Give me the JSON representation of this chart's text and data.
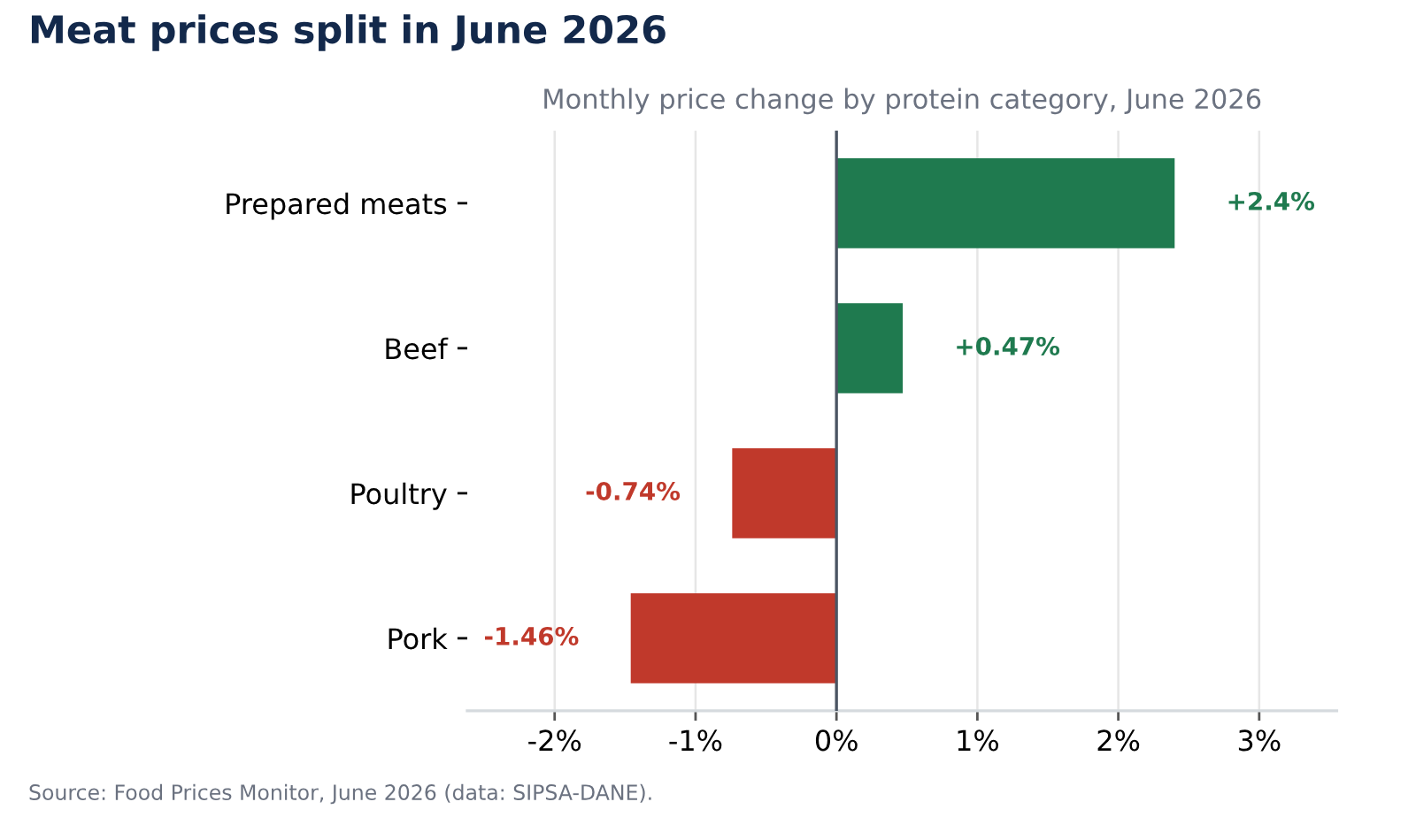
{
  "chart_data": {
    "type": "bar",
    "orientation": "horizontal",
    "title": "Meat prices split in June 2026",
    "subtitle": "Monthly price change by protein category, June 2026",
    "categories": [
      "Prepared meats",
      "Beef",
      "Poultry",
      "Pork"
    ],
    "values": [
      2.4,
      0.47,
      -0.74,
      -1.46
    ],
    "colors": [
      "#1f7a4f",
      "#1f7a4f",
      "#c0392b",
      "#c0392b"
    ],
    "value_labels": [
      "+2.4%",
      "+0.47%",
      "-0.74%",
      "-1.46%"
    ],
    "xlim": [
      -2.62,
      3.55
    ],
    "xticks": [
      {
        "value": -2,
        "label": "-2%"
      },
      {
        "value": -1,
        "label": "-1%"
      },
      {
        "value": 0,
        "label": "0%"
      },
      {
        "value": 1,
        "label": "1%"
      },
      {
        "value": 2,
        "label": "2%"
      },
      {
        "value": 3,
        "label": "3%"
      }
    ],
    "grid": "x",
    "ref_lines": [
      {
        "axis": "x",
        "value": 0,
        "color": "#4b5563"
      }
    ],
    "annotations": [
      "Source: Food Prices Monitor, June 2026 (data: SIPSA-DANE)."
    ]
  }
}
